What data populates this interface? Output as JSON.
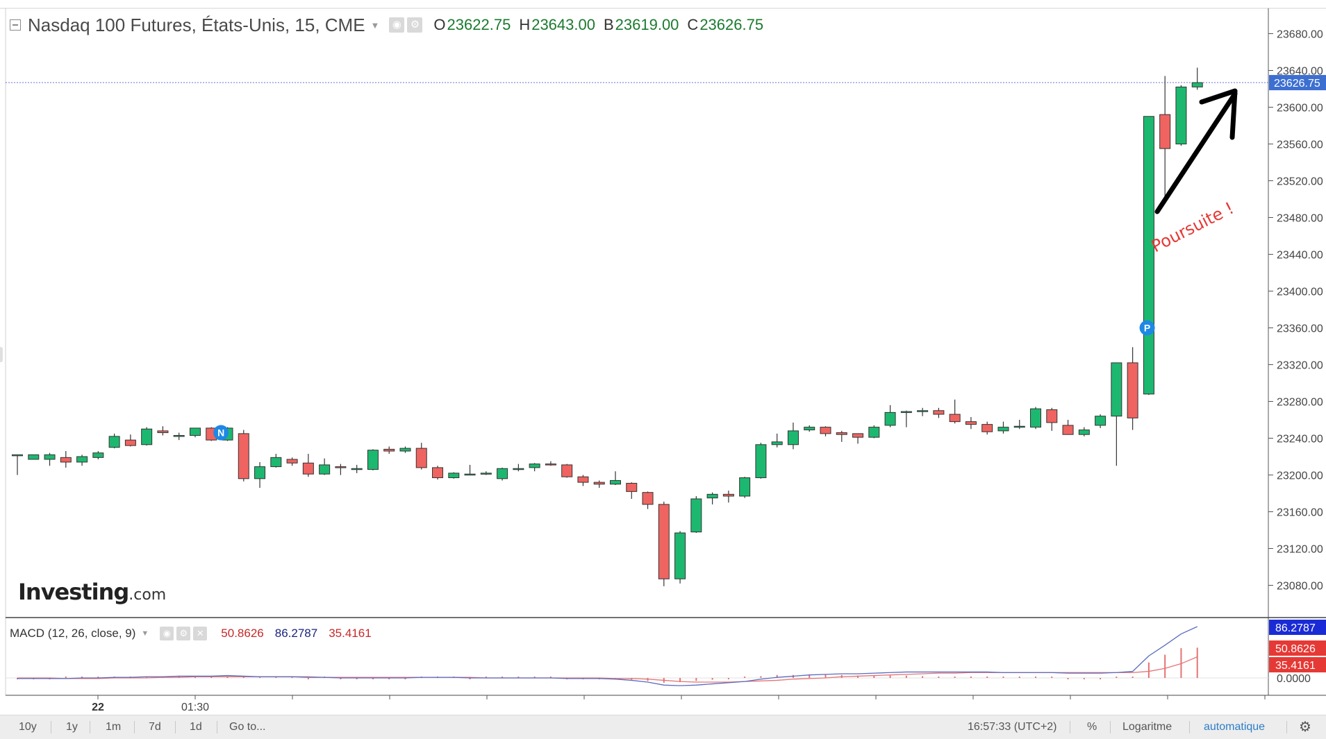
{
  "header": {
    "title": "Nasdaq 100 Futures, États-Unis, 15, CME",
    "open_label": "O",
    "open": "23622.75",
    "high_label": "H",
    "high": "23643.00",
    "low_label": "B",
    "low": "23619.00",
    "close_label": "C",
    "close": "23626.75"
  },
  "macd": {
    "label": "MACD (12, 26, close, 9)",
    "hist_value": "50.8626",
    "macd_value": "86.2787",
    "signal_value": "35.4161",
    "scale_labels": [
      "86.2787",
      "50.8626",
      "35.4161",
      "0.0000"
    ]
  },
  "last_price_label": "23626.75",
  "annotation": "Poursuite !",
  "event_markers": [
    "N",
    "P"
  ],
  "logo": {
    "main": "Investing",
    "domain": ".com"
  },
  "bottom_bar": {
    "ranges": [
      "10y",
      "1y",
      "1m",
      "7d",
      "1d"
    ],
    "goto": "Go to...",
    "time": "16:57:33 (UTC+2)",
    "percent": "%",
    "log": "Logaritme",
    "auto": "automatique"
  },
  "colors": {
    "up": "#1db870",
    "down": "#ef6461",
    "macd_line": "#5b6bc0",
    "signal_line": "#e57373",
    "price_label_bg": "#3d6fd1",
    "annotation": "#e53935",
    "marker_bg": "#1e88e5"
  },
  "chart_data": {
    "type": "candlestick",
    "interval": "15",
    "ylim": [
      23060,
      23700
    ],
    "y_ticks": [
      23080,
      23120,
      23160,
      23200,
      23240,
      23280,
      23320,
      23360,
      23400,
      23440,
      23480,
      23520,
      23560,
      23600,
      23640,
      23680
    ],
    "x_tick_labels": [
      "22",
      "01:30"
    ],
    "last_price": 23626.75,
    "candles": [
      [
        23222,
        23222,
        23200,
        23222
      ],
      [
        23217,
        23222,
        23218,
        23222
      ],
      [
        23217,
        23224,
        23210,
        23222
      ],
      [
        23219,
        23226,
        23208,
        23214
      ],
      [
        23214,
        23222,
        23210,
        23220
      ],
      [
        23219,
        23226,
        23217,
        23224
      ],
      [
        23230,
        23245,
        23229,
        23242
      ],
      [
        23238,
        23244,
        23231,
        23232
      ],
      [
        23233,
        23252,
        23232,
        23250
      ],
      [
        23248,
        23253,
        23243,
        23246
      ],
      [
        23242,
        23246,
        23238,
        23243
      ],
      [
        23243,
        23251,
        23241,
        23251
      ],
      [
        23251,
        23252,
        23237,
        23238
      ],
      [
        23238,
        23252,
        23237,
        23251
      ],
      [
        23245,
        23249,
        23193,
        23196
      ],
      [
        23196,
        23214,
        23186,
        23209
      ],
      [
        23209,
        23223,
        23208,
        23219
      ],
      [
        23217,
        23219,
        23210,
        23213
      ],
      [
        23213,
        23223,
        23198,
        23201
      ],
      [
        23201,
        23218,
        23200,
        23211
      ],
      [
        23209,
        23212,
        23200,
        23208
      ],
      [
        23207,
        23211,
        23202,
        23207
      ],
      [
        23206,
        23228,
        23205,
        23227
      ],
      [
        23228,
        23231,
        23223,
        23226
      ],
      [
        23226,
        23231,
        23224,
        23229
      ],
      [
        23229,
        23235,
        23206,
        23208
      ],
      [
        23208,
        23210,
        23195,
        23197
      ],
      [
        23197,
        23203,
        23196,
        23202
      ],
      [
        23201,
        23211,
        23200,
        23201
      ],
      [
        23201,
        23204,
        23200,
        23202
      ],
      [
        23196,
        23208,
        23194,
        23207
      ],
      [
        23206,
        23212,
        23204,
        23207
      ],
      [
        23208,
        23213,
        23204,
        23212
      ],
      [
        23212,
        23215,
        23210,
        23211
      ],
      [
        23211,
        23212,
        23197,
        23198
      ],
      [
        23198,
        23200,
        23188,
        23192
      ],
      [
        23192,
        23194,
        23186,
        23190
      ],
      [
        23190,
        23204,
        23189,
        23194
      ],
      [
        23191,
        23192,
        23174,
        23182
      ],
      [
        23181,
        23182,
        23163,
        23168
      ],
      [
        23168,
        23171,
        23079,
        23087
      ],
      [
        23087,
        23139,
        23082,
        23137
      ],
      [
        23138,
        23177,
        23137,
        23174
      ],
      [
        23175,
        23181,
        23168,
        23179
      ],
      [
        23179,
        23183,
        23170,
        23177
      ],
      [
        23177,
        23198,
        23175,
        23197
      ],
      [
        23197,
        23235,
        23196,
        23233
      ],
      [
        23233,
        23245,
        23230,
        23236
      ],
      [
        23233,
        23257,
        23228,
        23248
      ],
      [
        23249,
        23254,
        23247,
        23252
      ],
      [
        23252,
        23253,
        23242,
        23245
      ],
      [
        23246,
        23248,
        23236,
        23244
      ],
      [
        23245,
        23245,
        23234,
        23241
      ],
      [
        23241,
        23254,
        23240,
        23252
      ],
      [
        23254,
        23276,
        23252,
        23268
      ],
      [
        23269,
        23270,
        23252,
        23269
      ],
      [
        23269,
        23273,
        23264,
        23270
      ],
      [
        23270,
        23273,
        23262,
        23266
      ],
      [
        23266,
        23282,
        23256,
        23258
      ],
      [
        23258,
        23263,
        23250,
        23255
      ],
      [
        23255,
        23258,
        23244,
        23247
      ],
      [
        23248,
        23258,
        23245,
        23252
      ],
      [
        23252,
        23260,
        23250,
        23253
      ],
      [
        23252,
        23274,
        23250,
        23272
      ],
      [
        23271,
        23273,
        23248,
        23257
      ],
      [
        23254,
        23260,
        23244,
        23244
      ],
      [
        23244,
        23252,
        23242,
        23249
      ],
      [
        23254,
        23266,
        23251,
        23264
      ],
      [
        23264,
        23322,
        23210,
        23322
      ],
      [
        23322,
        23339,
        23249,
        23262
      ],
      [
        23288,
        23590,
        23287,
        23590
      ],
      [
        23592,
        23634,
        23500,
        23555
      ],
      [
        23560,
        23624,
        23558,
        23622
      ],
      [
        23622,
        23643,
        23619,
        23626.75
      ]
    ],
    "macd_series": [
      {
        "name": "MACD",
        "values": [
          -1,
          -1,
          -1,
          -1,
          0,
          0,
          1,
          1,
          2,
          2,
          3,
          3,
          3,
          4,
          3,
          2,
          2,
          2,
          1,
          1,
          0,
          0,
          0,
          0,
          0,
          1,
          1,
          1,
          0,
          0,
          0,
          0,
          0,
          0,
          -1,
          -1,
          -1,
          -2,
          -4,
          -7,
          -12,
          -13,
          -12,
          -10,
          -8,
          -6,
          -2,
          1,
          3,
          5,
          6,
          7,
          7,
          8,
          9,
          10,
          10,
          10,
          10,
          10,
          10,
          9,
          9,
          9,
          9,
          8,
          8,
          8,
          9,
          11,
          37,
          55,
          74,
          86.2787
        ]
      },
      {
        "name": "Signal",
        "values": [
          0,
          0,
          0,
          -1,
          -1,
          -1,
          0,
          0,
          0,
          1,
          1,
          2,
          2,
          2,
          2,
          2,
          2,
          2,
          2,
          1,
          1,
          1,
          1,
          1,
          1,
          1,
          1,
          1,
          1,
          0,
          0,
          0,
          0,
          0,
          0,
          0,
          0,
          -1,
          -1,
          -2,
          -4,
          -6,
          -7,
          -7,
          -7,
          -6,
          -5,
          -4,
          -2,
          -1,
          0,
          2,
          3,
          4,
          5,
          6,
          7,
          8,
          8,
          9,
          9,
          9,
          9,
          9,
          9,
          9,
          9,
          9,
          9,
          9,
          11,
          16,
          24,
          35.4161
        ]
      },
      {
        "name": "Histogram",
        "values": [
          -1,
          -1,
          -1,
          0,
          1,
          1,
          1,
          1,
          2,
          1,
          2,
          1,
          1,
          2,
          1,
          0,
          0,
          0,
          -1,
          0,
          -1,
          -1,
          -1,
          -1,
          -1,
          0,
          0,
          0,
          -1,
          0,
          0,
          0,
          0,
          0,
          -1,
          -1,
          -1,
          -1,
          -3,
          -5,
          -8,
          -7,
          -5,
          -3,
          -1,
          0,
          3,
          5,
          5,
          6,
          6,
          5,
          4,
          4,
          4,
          4,
          3,
          2,
          2,
          1,
          1,
          0,
          0,
          0,
          0,
          -1,
          -1,
          -1,
          0,
          2,
          26,
          39,
          50,
          50.8626
        ]
      }
    ],
    "macd_ylim": [
      -20,
      95
    ]
  }
}
